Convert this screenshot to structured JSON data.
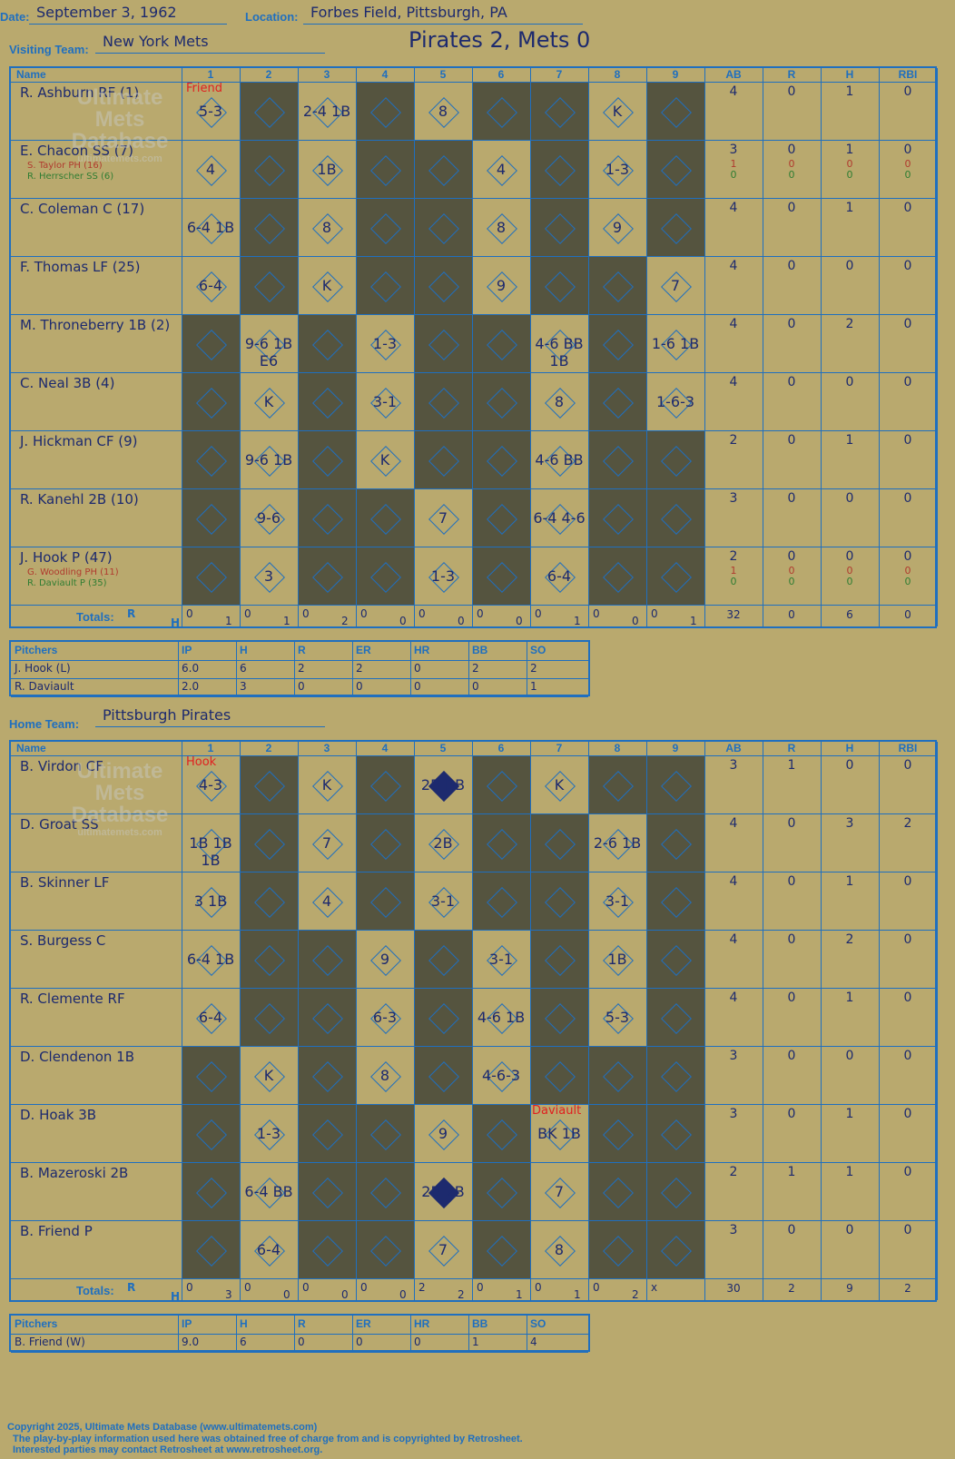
{
  "header": {
    "date_label": "Date:",
    "date": "September 3, 1962",
    "location_label": "Location:",
    "location": "Forbes Field, Pittsburgh, PA",
    "visiting_label": "Visiting Team:",
    "visiting_team": "New York Mets",
    "title": "Pirates 2, Mets 0",
    "home_label": "Home Team:",
    "home_team": "Pittsburgh Pirates"
  },
  "columns": {
    "name": "Name",
    "innings": [
      "1",
      "2",
      "3",
      "4",
      "5",
      "6",
      "7",
      "8",
      "9"
    ],
    "stats": [
      "AB",
      "R",
      "H",
      "RBI"
    ]
  },
  "watermark": [
    "Ultimate",
    "Mets",
    "Database",
    "ultimatemets.com"
  ],
  "visitors": {
    "pitcher_note": "Friend",
    "players": [
      {
        "name": "R. Ashburn RF (1)",
        "stats": [
          "4",
          "0",
          "1",
          "0"
        ]
      },
      {
        "name": "E. Chacon SS (7)",
        "sub1": "S. Taylor PH (16)",
        "sub2": "R. Herrscher SS (6)",
        "stats": [
          "3",
          "0",
          "1",
          "0"
        ],
        "sub1_stats": [
          "1",
          "0",
          "0",
          "0"
        ],
        "sub2_stats": [
          "0",
          "0",
          "0",
          "0"
        ]
      },
      {
        "name": "C. Coleman C (17)",
        "stats": [
          "4",
          "0",
          "1",
          "0"
        ]
      },
      {
        "name": "F. Thomas LF (25)",
        "stats": [
          "4",
          "0",
          "0",
          "0"
        ]
      },
      {
        "name": "M. Throneberry 1B (2)",
        "stats": [
          "4",
          "0",
          "2",
          "0"
        ]
      },
      {
        "name": "C. Neal 3B (4)",
        "stats": [
          "4",
          "0",
          "0",
          "0"
        ]
      },
      {
        "name": "J. Hickman CF (9)",
        "stats": [
          "2",
          "0",
          "1",
          "0"
        ]
      },
      {
        "name": "R. Kanehl 2B (10)",
        "stats": [
          "3",
          "0",
          "0",
          "0"
        ]
      },
      {
        "name": "J. Hook P (47)",
        "sub1": "G. Woodling PH (11)",
        "sub2": "R. Daviault P (35)",
        "stats": [
          "2",
          "0",
          "0",
          "0"
        ],
        "sub1_stats": [
          "1",
          "0",
          "0",
          "0"
        ],
        "sub2_stats": [
          "0",
          "0",
          "0",
          "0"
        ]
      }
    ],
    "plays": [
      [
        "5-3",
        "",
        "2-4 1B",
        "",
        "8",
        "",
        "",
        "K",
        ""
      ],
      [
        "4",
        "",
        "1B",
        "",
        "",
        "4",
        "",
        "1-3",
        ""
      ],
      [
        "6-4 1B",
        "",
        "8",
        "",
        "",
        "8",
        "",
        "9",
        ""
      ],
      [
        "6-4",
        "",
        "K",
        "",
        "",
        "9",
        "",
        "",
        "7"
      ],
      [
        "",
        "9-6 1B E6",
        "",
        "1-3",
        "",
        "",
        "4-6 BB 1B",
        "",
        "1-6 1B"
      ],
      [
        "",
        "K",
        "",
        "3-1",
        "",
        "",
        "8",
        "",
        "1-6-3"
      ],
      [
        "",
        "9-6 1B",
        "",
        "K",
        "",
        "",
        "4-6 BB",
        "",
        ""
      ],
      [
        "",
        "9-6",
        "",
        "",
        "7",
        "",
        "6-4 4-6",
        "",
        ""
      ],
      [
        "",
        "3",
        "",
        "",
        "1-3",
        "",
        "6-4",
        "",
        ""
      ]
    ],
    "totals_label": "Totals:",
    "totals_rh": [
      "R",
      "H"
    ],
    "inning_totals": [
      [
        "0",
        "1"
      ],
      [
        "0",
        "1"
      ],
      [
        "0",
        "2"
      ],
      [
        "0",
        "0"
      ],
      [
        "0",
        "0"
      ],
      [
        "0",
        "0"
      ],
      [
        "0",
        "1"
      ],
      [
        "0",
        "0"
      ],
      [
        "0",
        "1"
      ]
    ],
    "stat_totals": [
      "32",
      "0",
      "6",
      "0"
    ]
  },
  "visitor_pitching": {
    "headers": [
      "Pitchers",
      "IP",
      "H",
      "R",
      "ER",
      "HR",
      "BB",
      "SO"
    ],
    "rows": [
      [
        "J. Hook (L)",
        "6.0",
        "6",
        "2",
        "2",
        "0",
        "2",
        "2"
      ],
      [
        "R. Daviault",
        "2.0",
        "3",
        "0",
        "0",
        "0",
        "0",
        "1"
      ]
    ]
  },
  "home": {
    "pitcher_note": "Hook",
    "pitcher_note2": "Daviault",
    "players": [
      {
        "name": "B. Virdon CF",
        "stats": [
          "3",
          "1",
          "0",
          "0"
        ]
      },
      {
        "name": "D. Groat SS",
        "stats": [
          "4",
          "0",
          "3",
          "2"
        ]
      },
      {
        "name": "B. Skinner LF",
        "stats": [
          "4",
          "0",
          "1",
          "0"
        ]
      },
      {
        "name": "S. Burgess C",
        "stats": [
          "4",
          "0",
          "2",
          "0"
        ]
      },
      {
        "name": "R. Clemente RF",
        "stats": [
          "4",
          "0",
          "1",
          "0"
        ]
      },
      {
        "name": "D. Clendenon 1B",
        "stats": [
          "3",
          "0",
          "0",
          "0"
        ]
      },
      {
        "name": "D. Hoak 3B",
        "stats": [
          "3",
          "0",
          "1",
          "0"
        ]
      },
      {
        "name": "B. Mazeroski 2B",
        "stats": [
          "2",
          "1",
          "1",
          "0"
        ]
      },
      {
        "name": "B. Friend P",
        "stats": [
          "3",
          "0",
          "0",
          "0"
        ]
      }
    ],
    "plays": [
      [
        "4-3",
        "",
        "K",
        "",
        "2B BB",
        "",
        "K",
        "",
        ""
      ],
      [
        "1B 1B 1B",
        "",
        "7",
        "",
        "2B",
        "",
        "",
        "2-6 1B",
        ""
      ],
      [
        "3 1B",
        "",
        "4",
        "",
        "3-1",
        "",
        "",
        "3-1",
        ""
      ],
      [
        "6-4 1B",
        "",
        "",
        "9",
        "",
        "3-1",
        "",
        "1B",
        ""
      ],
      [
        "6-4",
        "",
        "",
        "6-3",
        "",
        "4-6 1B",
        "",
        "5-3",
        ""
      ],
      [
        "",
        "K",
        "",
        "8",
        "",
        "4-6-3",
        "",
        "",
        ""
      ],
      [
        "",
        "1-3",
        "",
        "",
        "9",
        "",
        "BK 1B",
        "",
        ""
      ],
      [
        "",
        "6-4 BB",
        "",
        "",
        "2B 2B",
        "",
        "7",
        "",
        ""
      ],
      [
        "",
        "6-4",
        "",
        "",
        "7",
        "",
        "8",
        "",
        ""
      ]
    ],
    "totals_label": "Totals:",
    "totals_rh": [
      "R",
      "H"
    ],
    "inning_totals": [
      [
        "0",
        "3"
      ],
      [
        "0",
        "0"
      ],
      [
        "0",
        "0"
      ],
      [
        "0",
        "0"
      ],
      [
        "2",
        "2"
      ],
      [
        "0",
        "1"
      ],
      [
        "0",
        "1"
      ],
      [
        "0",
        "2"
      ],
      [
        "x",
        ""
      ]
    ],
    "stat_totals": [
      "30",
      "2",
      "9",
      "2"
    ]
  },
  "home_pitching": {
    "headers": [
      "Pitchers",
      "IP",
      "H",
      "R",
      "ER",
      "HR",
      "BB",
      "SO"
    ],
    "rows": [
      [
        "B. Friend (W)",
        "9.0",
        "6",
        "0",
        "0",
        "0",
        "1",
        "4"
      ]
    ]
  },
  "footer": {
    "line1": "Copyright 2025, Ultimate Mets Database (www.ultimatemets.com)",
    "line2": "The play-by-play information used here was obtained free of charge from and is copyrighted by Retrosheet.",
    "line3": "Interested parties may contact Retrosheet at www.retrosheet.org."
  },
  "colors": {
    "background": "#b9a96e",
    "grid": "#1f6fbf",
    "shade": "#55543f",
    "ink": "#1d2a6e",
    "red": "#e02020"
  }
}
